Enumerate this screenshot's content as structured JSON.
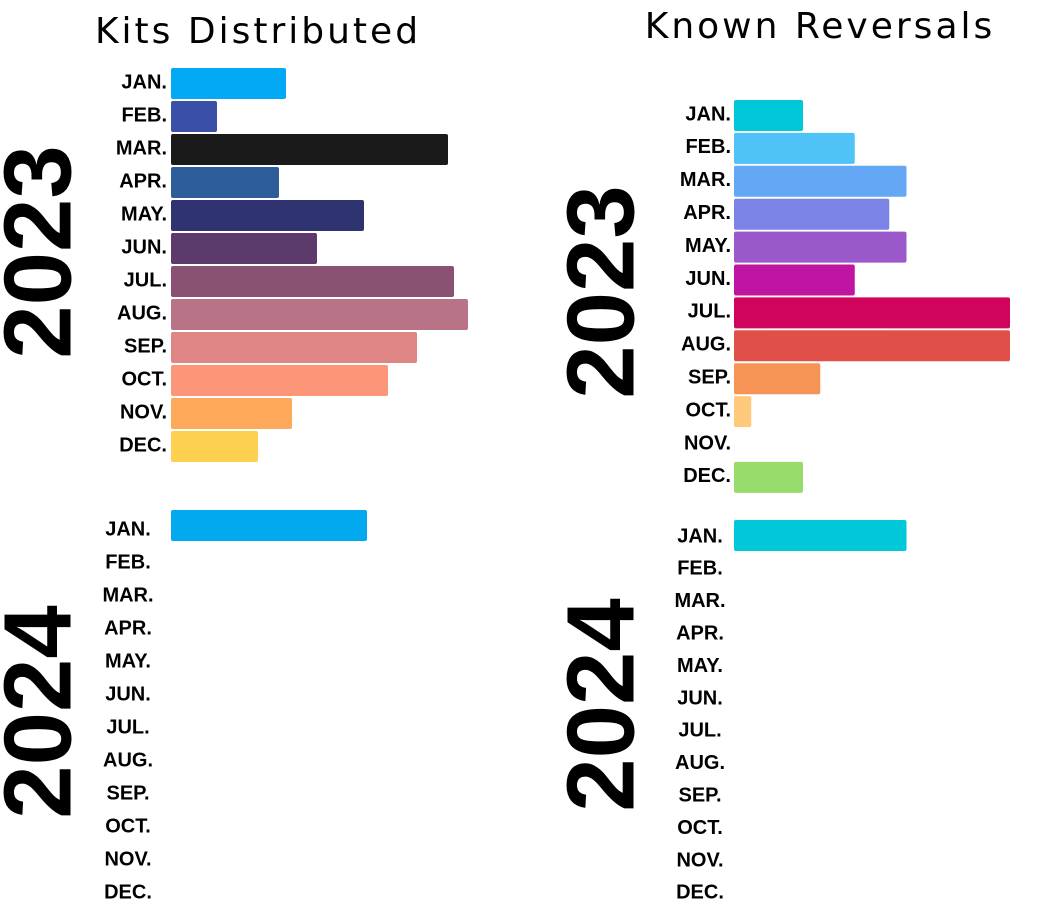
{
  "chart_data": [
    {
      "type": "bar",
      "title": "Kits Distributed",
      "groups": [
        {
          "label": "2023",
          "categories": [
            "JAN.",
            "FEB.",
            "MAR.",
            "APR.",
            "MAY.",
            "JUN.",
            "JUL.",
            "AUG.",
            "SEP.",
            "OCT.",
            "NOV.",
            "DEC."
          ],
          "values": [
            115,
            46,
            277,
            108,
            193,
            146,
            283,
            297,
            246,
            217,
            121,
            87
          ],
          "colors": [
            "#03a9f4",
            "#3a4fa8",
            "#1a1a1a",
            "#2e5e9a",
            "#2f3470",
            "#5c3a6b",
            "#8a5272",
            "#b87486",
            "#e08585",
            "#fd9578",
            "#fda85a",
            "#fdd04f"
          ]
        },
        {
          "label": "2024",
          "categories": [
            "JAN.",
            "FEB.",
            "MAR.",
            "APR.",
            "MAY.",
            "JUN.",
            "JUL.",
            "AUG.",
            "SEP.",
            "OCT.",
            "NOV.",
            "DEC."
          ],
          "values": [
            196,
            null,
            null,
            null,
            null,
            null,
            null,
            null,
            null,
            null,
            null,
            null
          ],
          "colors": [
            "#03a9ee",
            null,
            null,
            null,
            null,
            null,
            null,
            null,
            null,
            null,
            null,
            null
          ]
        }
      ]
    },
    {
      "type": "bar",
      "title": "Known Reversals",
      "groups": [
        {
          "label": "2023",
          "categories": [
            "JAN.",
            "FEB.",
            "MAR.",
            "APR.",
            "MAY.",
            "JUN.",
            "JUL.",
            "AUG.",
            "SEP.",
            "OCT.",
            "NOV.",
            "DEC."
          ],
          "values": [
            4,
            7,
            10,
            9,
            10,
            7,
            16,
            16,
            5,
            1,
            0,
            4
          ],
          "colors": [
            "#00c8d8",
            "#4fc3f7",
            "#64a7f5",
            "#7b84e6",
            "#9a58cb",
            "#c014a2",
            "#d0045c",
            "#e05048",
            "#f59455",
            "#fec97a",
            "#a0d070",
            "#98dd6b"
          ]
        },
        {
          "label": "2024",
          "categories": [
            "JAN.",
            "FEB.",
            "MAR.",
            "APR.",
            "MAY.",
            "JUN.",
            "JUL.",
            "AUG.",
            "SEP.",
            "OCT.",
            "NOV.",
            "DEC."
          ],
          "values": [
            10,
            null,
            null,
            null,
            null,
            null,
            null,
            null,
            null,
            null,
            null,
            null
          ],
          "colors": [
            "#00c8d8",
            null,
            null,
            null,
            null,
            null,
            null,
            null,
            null,
            null,
            null,
            null
          ]
        }
      ]
    }
  ]
}
